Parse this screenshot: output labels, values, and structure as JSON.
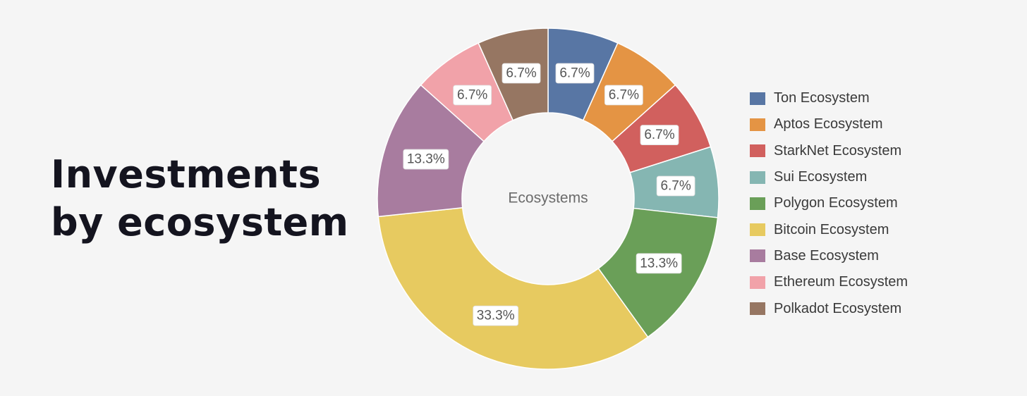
{
  "headline": {
    "line1": "Investments",
    "line2": "by ecosystem"
  },
  "chart_data": {
    "type": "pie",
    "variant": "donut",
    "center_label": "Ecosystems",
    "legend_position": "right",
    "slices": [
      {
        "name": "Ton Ecosystem",
        "value": 6.7,
        "label": "6.7%",
        "color": "#5876a4"
      },
      {
        "name": "Aptos Ecosystem",
        "value": 6.7,
        "label": "6.7%",
        "color": "#e49444"
      },
      {
        "name": "StarkNet Ecosystem",
        "value": 6.7,
        "label": "6.7%",
        "color": "#d1605e"
      },
      {
        "name": "Sui Ecosystem",
        "value": 6.7,
        "label": "6.7%",
        "color": "#85b6b2"
      },
      {
        "name": "Polygon Ecosystem",
        "value": 13.3,
        "label": "13.3%",
        "color": "#6a9f58"
      },
      {
        "name": "Bitcoin Ecosystem",
        "value": 33.3,
        "label": "33.3%",
        "color": "#e7ca60"
      },
      {
        "name": "Base Ecosystem",
        "value": 13.3,
        "label": "13.3%",
        "color": "#a87c9f"
      },
      {
        "name": "Ethereum Ecosystem",
        "value": 6.7,
        "label": "6.7%",
        "color": "#f1a2a9"
      },
      {
        "name": "Polkadot Ecosystem",
        "value": 6.7,
        "label": "6.7%",
        "color": "#967662"
      }
    ]
  }
}
